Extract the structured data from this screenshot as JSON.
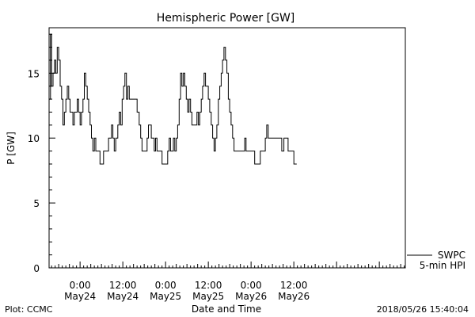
{
  "chart_data": {
    "type": "line",
    "title": "Hemispheric Power [GW]",
    "xlabel": "Date and Time",
    "ylabel": "P [GW]",
    "ylim": [
      0,
      18.5
    ],
    "xlim_hours": [
      -8.7,
      91.3
    ],
    "yticks": [
      {
        "value": 0,
        "label": "0"
      },
      {
        "value": 5,
        "label": "5"
      },
      {
        "value": 10,
        "label": "10"
      },
      {
        "value": 15,
        "label": "15"
      }
    ],
    "xticks": [
      {
        "hours": 0,
        "time": "0:00",
        "date": "May24"
      },
      {
        "hours": 12,
        "time": "12:00",
        "date": "May24"
      },
      {
        "hours": 24,
        "time": "0:00",
        "date": "May25"
      },
      {
        "hours": 36,
        "time": "12:00",
        "date": "May25"
      },
      {
        "hours": 48,
        "time": "0:00",
        "date": "May26"
      },
      {
        "hours": 60,
        "time": "12:00",
        "date": "May26"
      }
    ],
    "series": [
      {
        "name": "SWPC 5-min HPI",
        "color": "#000000",
        "points": [
          [
            -8.7,
            13
          ],
          [
            -8.3,
            18
          ],
          [
            -8.0,
            14
          ],
          [
            -7.6,
            15
          ],
          [
            -7.2,
            16
          ],
          [
            -6.8,
            15
          ],
          [
            -6.4,
            17
          ],
          [
            -6.0,
            16
          ],
          [
            -5.6,
            14
          ],
          [
            -5.2,
            13
          ],
          [
            -4.8,
            11
          ],
          [
            -4.4,
            12
          ],
          [
            -4.0,
            13
          ],
          [
            -3.6,
            14
          ],
          [
            -3.2,
            13
          ],
          [
            -2.8,
            12
          ],
          [
            -2.4,
            12
          ],
          [
            -2.0,
            11
          ],
          [
            -1.6,
            12
          ],
          [
            -1.2,
            12
          ],
          [
            -0.8,
            13
          ],
          [
            -0.4,
            12
          ],
          [
            0.0,
            11
          ],
          [
            0.4,
            12
          ],
          [
            0.8,
            13
          ],
          [
            1.2,
            15
          ],
          [
            1.6,
            14
          ],
          [
            2.0,
            13
          ],
          [
            2.4,
            12
          ],
          [
            2.8,
            11
          ],
          [
            3.2,
            10
          ],
          [
            3.6,
            9
          ],
          [
            4.0,
            10
          ],
          [
            4.4,
            9
          ],
          [
            5.0,
            9
          ],
          [
            5.6,
            8
          ],
          [
            6.0,
            8
          ],
          [
            6.6,
            9
          ],
          [
            7.2,
            9
          ],
          [
            8.0,
            10
          ],
          [
            8.8,
            11
          ],
          [
            9.2,
            10
          ],
          [
            9.6,
            9
          ],
          [
            10.0,
            10
          ],
          [
            10.6,
            11
          ],
          [
            11.0,
            12
          ],
          [
            11.4,
            11
          ],
          [
            11.8,
            13
          ],
          [
            12.2,
            14
          ],
          [
            12.6,
            15
          ],
          [
            13.0,
            13
          ],
          [
            13.4,
            14
          ],
          [
            13.8,
            13
          ],
          [
            14.2,
            13
          ],
          [
            14.8,
            13
          ],
          [
            15.4,
            13
          ],
          [
            16.0,
            12
          ],
          [
            16.6,
            11
          ],
          [
            17.0,
            10
          ],
          [
            17.4,
            9
          ],
          [
            18.2,
            9
          ],
          [
            18.8,
            10
          ],
          [
            19.2,
            11
          ],
          [
            19.6,
            11
          ],
          [
            20.0,
            10
          ],
          [
            20.4,
            10
          ],
          [
            20.8,
            9
          ],
          [
            21.2,
            10
          ],
          [
            21.6,
            9
          ],
          [
            22.4,
            9
          ],
          [
            23.0,
            8
          ],
          [
            24.0,
            8
          ],
          [
            24.6,
            9
          ],
          [
            25.0,
            10
          ],
          [
            25.4,
            9
          ],
          [
            25.8,
            9
          ],
          [
            26.2,
            10
          ],
          [
            26.6,
            9
          ],
          [
            27.0,
            10
          ],
          [
            27.4,
            11
          ],
          [
            27.8,
            13
          ],
          [
            28.2,
            15
          ],
          [
            28.6,
            14
          ],
          [
            29.0,
            15
          ],
          [
            29.4,
            14
          ],
          [
            29.8,
            13
          ],
          [
            30.2,
            12
          ],
          [
            30.6,
            13
          ],
          [
            31.0,
            12
          ],
          [
            31.4,
            11
          ],
          [
            32.2,
            11
          ],
          [
            32.8,
            12
          ],
          [
            33.2,
            11
          ],
          [
            33.6,
            12
          ],
          [
            34.0,
            13
          ],
          [
            34.4,
            14
          ],
          [
            34.8,
            15
          ],
          [
            35.2,
            14
          ],
          [
            35.6,
            14
          ],
          [
            36.0,
            13
          ],
          [
            36.4,
            12
          ],
          [
            36.8,
            11
          ],
          [
            37.2,
            10
          ],
          [
            37.6,
            9
          ],
          [
            38.0,
            10
          ],
          [
            38.4,
            11
          ],
          [
            38.8,
            13
          ],
          [
            39.2,
            14
          ],
          [
            39.6,
            15
          ],
          [
            40.0,
            16
          ],
          [
            40.4,
            17
          ],
          [
            40.8,
            16
          ],
          [
            41.2,
            15
          ],
          [
            41.6,
            13
          ],
          [
            42.0,
            12
          ],
          [
            42.4,
            11
          ],
          [
            42.8,
            10
          ],
          [
            43.2,
            9
          ],
          [
            44.0,
            9
          ],
          [
            44.8,
            9
          ],
          [
            45.6,
            9
          ],
          [
            46.2,
            10
          ],
          [
            46.6,
            9
          ],
          [
            47.2,
            9
          ],
          [
            48.0,
            9
          ],
          [
            48.4,
            9
          ],
          [
            49.0,
            8
          ],
          [
            50.0,
            8
          ],
          [
            50.6,
            9
          ],
          [
            51.4,
            9
          ],
          [
            52.0,
            10
          ],
          [
            52.4,
            11
          ],
          [
            52.8,
            10
          ],
          [
            53.6,
            10
          ],
          [
            54.4,
            10
          ],
          [
            55.2,
            10
          ],
          [
            56.0,
            10
          ],
          [
            56.6,
            9
          ],
          [
            57.2,
            10
          ],
          [
            57.8,
            10
          ],
          [
            58.4,
            9
          ],
          [
            59.6,
            9
          ],
          [
            60.0,
            8
          ],
          [
            60.8,
            8
          ]
        ]
      }
    ],
    "legend": {
      "line1": "SWPC",
      "line2": "5-min HPI",
      "position": "bottom-right"
    }
  },
  "footer": {
    "left": "Plot: CCMC",
    "right": "2018/05/26 15:40:04"
  }
}
